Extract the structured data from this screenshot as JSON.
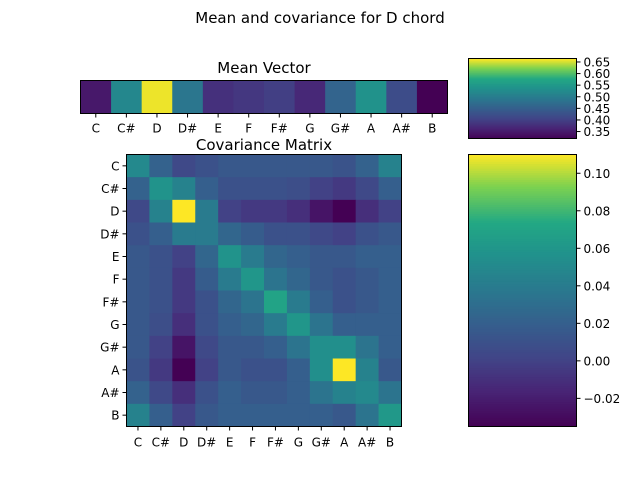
{
  "chart_data": {
    "title": "Mean and covariance for D chord",
    "notes": [
      "C",
      "C#",
      "D",
      "D#",
      "E",
      "F",
      "F#",
      "G",
      "G#",
      "A",
      "A#",
      "B"
    ],
    "colormap": "viridis",
    "charts": [
      {
        "type": "heatmap",
        "title": "Mean Vector",
        "xlabels": [
          "C",
          "C#",
          "D",
          "D#",
          "E",
          "F",
          "F#",
          "G",
          "G#",
          "A",
          "A#",
          "B"
        ],
        "values": [
          0.35,
          0.52,
          0.66,
          0.49,
          0.38,
          0.39,
          0.4,
          0.37,
          0.46,
          0.54,
          0.42,
          0.32
        ],
        "colorbar": {
          "ticks": [
            0.35,
            0.4,
            0.45,
            0.5,
            0.55,
            0.6,
            0.65
          ],
          "tick_labels": [
            "0.35",
            "0.40",
            "0.45",
            "0.50",
            "0.55",
            "0.60",
            "0.65"
          ],
          "range": [
            0.32,
            0.665
          ]
        }
      },
      {
        "type": "heatmap",
        "title": "Covariance Matrix",
        "xlabels": [
          "C",
          "C#",
          "D",
          "D#",
          "E",
          "F",
          "F#",
          "G",
          "G#",
          "A",
          "A#",
          "B"
        ],
        "ylabels": [
          "C",
          "C#",
          "D",
          "D#",
          "E",
          "F",
          "F#",
          "G",
          "G#",
          "A",
          "A#",
          "B"
        ],
        "matrix": [
          [
            0.05,
            0.022,
            0.005,
            0.01,
            0.015,
            0.015,
            0.015,
            0.015,
            0.015,
            0.012,
            0.022,
            0.045
          ],
          [
            0.022,
            0.058,
            0.045,
            0.02,
            0.01,
            0.01,
            0.01,
            0.008,
            0.0,
            -0.005,
            0.005,
            0.02
          ],
          [
            0.005,
            0.045,
            0.11,
            0.04,
            0.0,
            -0.005,
            -0.005,
            -0.01,
            -0.025,
            -0.035,
            -0.01,
            0.0
          ],
          [
            0.01,
            0.02,
            0.04,
            0.04,
            0.025,
            0.018,
            0.01,
            0.01,
            0.005,
            0.0,
            0.01,
            0.015
          ],
          [
            0.015,
            0.01,
            0.0,
            0.025,
            0.058,
            0.04,
            0.025,
            0.02,
            0.015,
            0.015,
            0.02,
            0.02
          ],
          [
            0.015,
            0.01,
            -0.005,
            0.018,
            0.04,
            0.06,
            0.035,
            0.025,
            0.015,
            0.01,
            0.015,
            0.02
          ],
          [
            0.015,
            0.01,
            -0.005,
            0.01,
            0.025,
            0.035,
            0.07,
            0.04,
            0.02,
            0.01,
            0.015,
            0.02
          ],
          [
            0.015,
            0.008,
            -0.01,
            0.01,
            0.02,
            0.025,
            0.04,
            0.06,
            0.035,
            0.02,
            0.02,
            0.02
          ],
          [
            0.015,
            0.0,
            -0.025,
            0.005,
            0.015,
            0.015,
            0.02,
            0.035,
            0.055,
            0.055,
            0.035,
            0.02
          ],
          [
            0.012,
            -0.005,
            -0.035,
            0.0,
            0.015,
            0.01,
            0.01,
            0.02,
            0.055,
            0.11,
            0.045,
            0.015
          ],
          [
            0.022,
            0.005,
            -0.01,
            0.01,
            0.02,
            0.015,
            0.015,
            0.02,
            0.035,
            0.045,
            0.05,
            0.035
          ],
          [
            0.045,
            0.02,
            0.0,
            0.015,
            0.02,
            0.02,
            0.02,
            0.02,
            0.02,
            0.015,
            0.035,
            0.062
          ]
        ],
        "colorbar": {
          "ticks": [
            -0.02,
            0.0,
            0.02,
            0.04,
            0.06,
            0.08,
            0.1
          ],
          "tick_labels": [
            "−0.02",
            "0.00",
            "0.02",
            "0.04",
            "0.06",
            "0.08",
            "0.10"
          ],
          "range": [
            -0.035,
            0.11
          ]
        }
      }
    ]
  }
}
